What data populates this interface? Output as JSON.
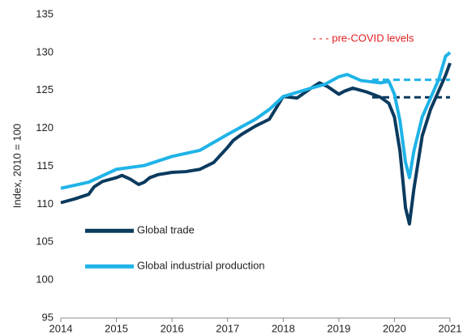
{
  "chart_data": {
    "type": "line",
    "y_label": "Index, 2010 = 100",
    "ylim": [
      95,
      135
    ],
    "yticks": [
      95,
      100,
      105,
      110,
      115,
      120,
      125,
      130,
      135
    ],
    "xlim": [
      2014,
      2021
    ],
    "xticks": [
      2014,
      2015,
      2016,
      2017,
      2018,
      2019,
      2020,
      2021
    ],
    "legend": "lower left",
    "series": [
      {
        "name": "Global trade",
        "color": "#0b3a5e",
        "x": [
          2014,
          2014.25,
          2014.5,
          2014.6,
          2014.75,
          2015,
          2015.1,
          2015.25,
          2015.4,
          2015.5,
          2015.6,
          2015.75,
          2016,
          2016.25,
          2016.5,
          2016.75,
          2017,
          2017.1,
          2017.25,
          2017.5,
          2017.75,
          2018,
          2018.25,
          2018.5,
          2018.65,
          2018.8,
          2019,
          2019.1,
          2019.25,
          2019.5,
          2019.75,
          2019.9,
          2020,
          2020.1,
          2020.2,
          2020.27,
          2020.35,
          2020.5,
          2020.65,
          2020.8,
          2020.92,
          2021
        ],
        "values": [
          110.2,
          110.7,
          111.3,
          112.3,
          113,
          113.5,
          113.8,
          113.3,
          112.6,
          112.9,
          113.5,
          113.9,
          114.2,
          114.3,
          114.6,
          115.5,
          117.5,
          118.4,
          119.2,
          120.3,
          121.2,
          124.2,
          124,
          125.3,
          126,
          125.5,
          124.5,
          124.9,
          125.3,
          124.8,
          124.1,
          123.3,
          121.5,
          117,
          109.5,
          107.4,
          112,
          119,
          122.5,
          125,
          127,
          128.6
        ]
      },
      {
        "name": "Global industrial production",
        "color": "#1fb3e8",
        "x": [
          2014,
          2014.5,
          2015,
          2015.5,
          2016,
          2016.5,
          2017,
          2017.5,
          2017.75,
          2018,
          2018.5,
          2018.75,
          2019,
          2019.15,
          2019.4,
          2019.75,
          2019.9,
          2020,
          2020.1,
          2020.2,
          2020.27,
          2020.35,
          2020.5,
          2020.65,
          2020.8,
          2020.92,
          2021
        ],
        "values": [
          112.1,
          112.9,
          114.6,
          115.1,
          116.3,
          117.1,
          119.2,
          121.2,
          122.5,
          124.2,
          125.3,
          125.8,
          126.8,
          127.1,
          126.3,
          126,
          126.2,
          124.5,
          121,
          115.5,
          113.5,
          117,
          121.5,
          124,
          126.5,
          129.5,
          130
        ]
      }
    ],
    "annotation": {
      "text": "- - - pre-COVID levels",
      "color": "#e02020"
    },
    "reference_lines": [
      {
        "series": 0,
        "value": 124.1,
        "xrange": [
          2019.6,
          2021
        ]
      },
      {
        "series": 1,
        "value": 126.4,
        "xrange": [
          2019.6,
          2021
        ]
      }
    ]
  }
}
